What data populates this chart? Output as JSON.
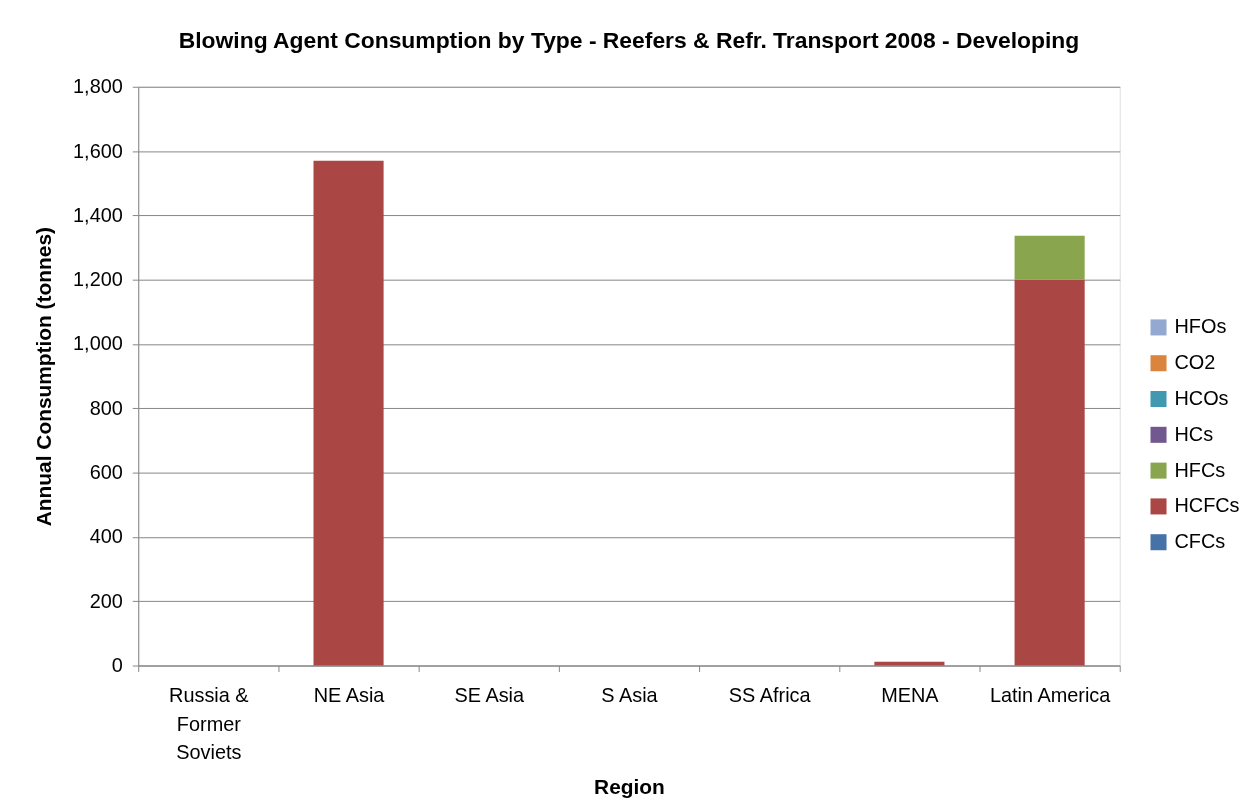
{
  "chart_data": {
    "type": "bar",
    "title": "Blowing Agent Consumption by Type - Reefers & Refr. Transport 2008 - Developing",
    "xlabel": "Region",
    "ylabel": "Annual Consumption (tonnes)",
    "categories": [
      "Russia & Former Soviets",
      "NE Asia",
      "SE Asia",
      "S Asia",
      "SS Africa",
      "MENA",
      "Latin America"
    ],
    "series": [
      {
        "name": "CFCs",
        "color": "#4572a7",
        "values": [
          0,
          0,
          0,
          0,
          0,
          0,
          0
        ]
      },
      {
        "name": "HCFCs",
        "color": "#aa4643",
        "values": [
          0,
          1570,
          0,
          0,
          0,
          12,
          1200
        ]
      },
      {
        "name": "HFCs",
        "color": "#89a54e",
        "values": [
          0,
          0,
          0,
          0,
          0,
          0,
          137
        ]
      },
      {
        "name": "HCs",
        "color": "#71588f",
        "values": [
          0,
          0,
          0,
          0,
          0,
          0,
          0
        ]
      },
      {
        "name": "HCOs",
        "color": "#4198af",
        "values": [
          0,
          0,
          0,
          0,
          0,
          0,
          0
        ]
      },
      {
        "name": "CO2",
        "color": "#db843d",
        "values": [
          0,
          0,
          0,
          0,
          0,
          0,
          0
        ]
      },
      {
        "name": "HFOs",
        "color": "#93a9cf",
        "values": [
          0,
          0,
          0,
          0,
          0,
          0,
          0
        ]
      }
    ],
    "stacked": true,
    "ylim": [
      0,
      1800
    ],
    "yticks": [
      0,
      200,
      400,
      600,
      800,
      {
        "value": 1000,
        "label": "1,000"
      },
      {
        "value": 1200,
        "label": "1,200"
      },
      {
        "value": 1400,
        "label": "1,400"
      },
      {
        "value": 1600,
        "label": "1,600"
      },
      {
        "value": 1800,
        "label": "1,800"
      }
    ],
    "grid": "y",
    "legend": "right"
  }
}
